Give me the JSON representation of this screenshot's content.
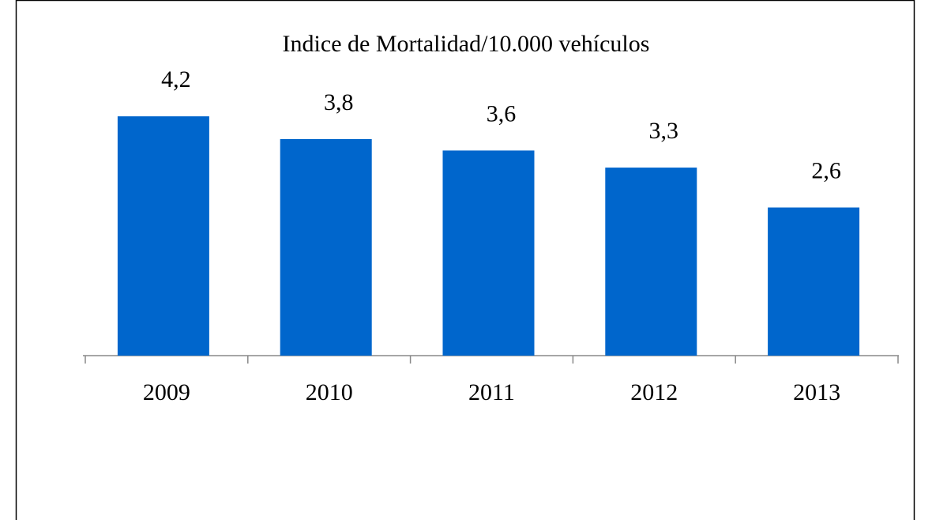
{
  "chart_data": {
    "type": "bar",
    "title": "Indice de Mortalidad/10.000 vehículos",
    "categories": [
      "2009",
      "2010",
      "2011",
      "2012",
      "2013"
    ],
    "values": [
      4.2,
      3.8,
      3.6,
      3.3,
      2.6
    ],
    "value_labels": [
      "4,2",
      "3,8",
      "3,6",
      "3,3",
      "2,6"
    ],
    "color": "#0066cc"
  }
}
